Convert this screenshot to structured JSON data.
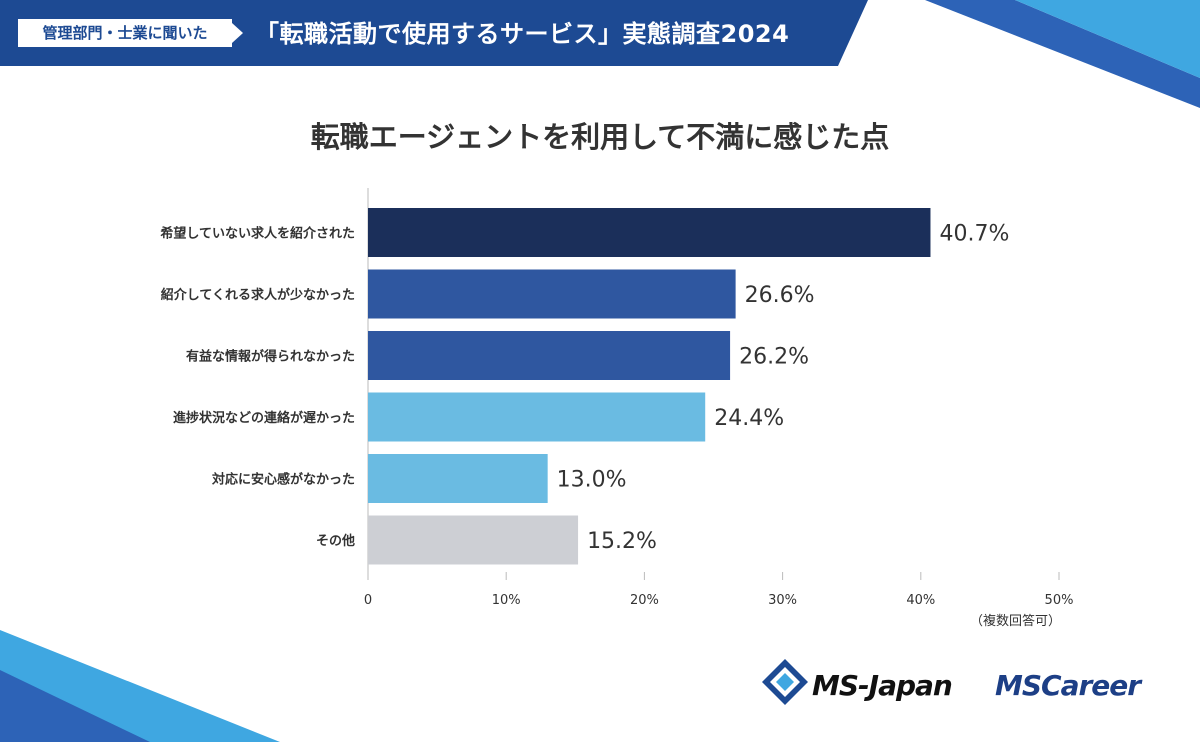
{
  "header": {
    "tag": "管理部門・士業に聞いた",
    "title": "「転職活動で使用するサービス」実態調査2024"
  },
  "note": "（複数回答可）",
  "logos": {
    "ms_japan": "MS-Japan",
    "ms_career": "MSCareer"
  },
  "colors": {
    "banner": "#1d4a93",
    "accent_light": "#3fa7e1",
    "bar_dark": "#1b2f5a",
    "bar_mid": "#2f57a0",
    "bar_light": "#6abbe2",
    "bar_gray": "#cdcfd4"
  },
  "chart_data": {
    "type": "bar",
    "orientation": "horizontal",
    "title": "転職エージェントを利用して不満に感じた点",
    "categories": [
      "希望していない求人を紹介された",
      "紹介してくれる求人が少なかった",
      "有益な情報が得られなかった",
      "進捗状況などの連絡が遅かった",
      "対応に安心感がなかった",
      "その他"
    ],
    "values": [
      40.7,
      26.6,
      26.2,
      24.4,
      13.0,
      15.2
    ],
    "value_labels": [
      "40.7%",
      "26.6%",
      "26.2%",
      "24.4%",
      "13.0%",
      "15.2%"
    ],
    "bar_colors": [
      "#1b2f5a",
      "#2f57a0",
      "#2f57a0",
      "#6abbe2",
      "#6abbe2",
      "#cdcfd4"
    ],
    "xlim": [
      0,
      50
    ],
    "xticks": [
      0,
      10,
      20,
      30,
      40,
      50
    ],
    "xtick_labels": [
      "0",
      "10%",
      "20%",
      "30%",
      "40%",
      "50%"
    ],
    "grid": false
  }
}
